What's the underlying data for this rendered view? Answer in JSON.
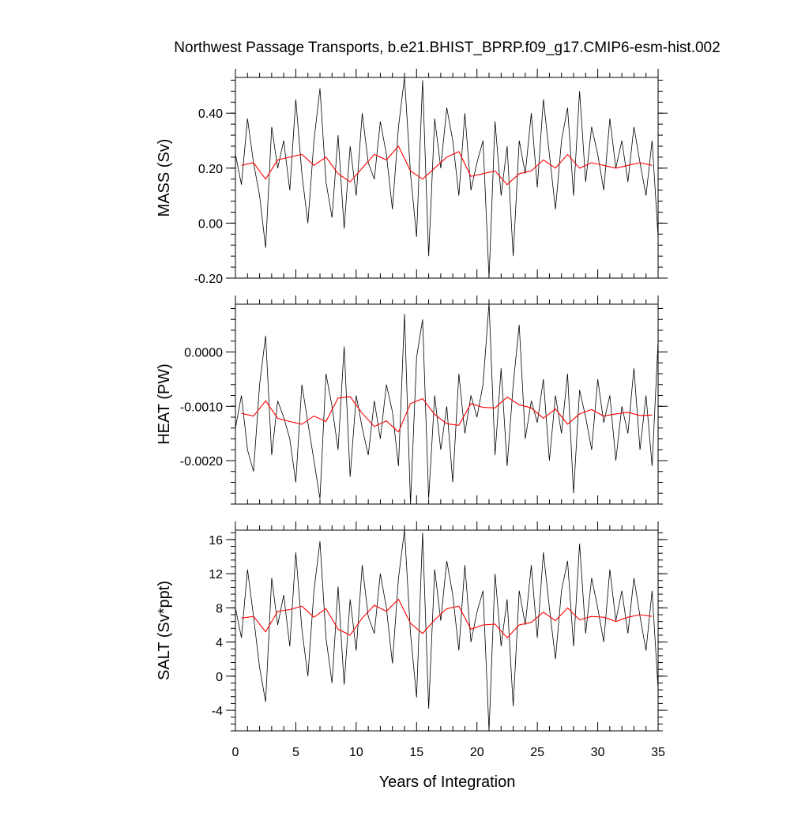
{
  "title": "Northwest Passage Transports, b.e21.BHIST_BPRP.f09_g17.CMIP6-esm-hist.002",
  "xlabel": "Years of Integration",
  "colors": {
    "raw": "#000000",
    "annual_mean": "#ff0000",
    "axes": "#000000"
  },
  "chart_data": [
    {
      "type": "line",
      "panel": "mass",
      "ylabel": "MASS (Sv)",
      "xlim": [
        0,
        35
      ],
      "ylim": [
        -0.2,
        0.53
      ],
      "x_ticks": [
        0,
        5,
        10,
        15,
        20,
        25,
        30,
        35
      ],
      "y_ticks": [
        -0.2,
        0.0,
        0.2,
        0.4
      ],
      "y_tick_labels": [
        "-0.20",
        "0.00",
        "0.20",
        "0.40"
      ],
      "series": [
        {
          "role": "monthly",
          "x": [
            0.0,
            0.5,
            1.0,
            1.5,
            2.0,
            2.5,
            3.0,
            3.5,
            4.0,
            4.5,
            5.0,
            5.5,
            6.0,
            6.5,
            7.0,
            7.5,
            8.0,
            8.5,
            9.0,
            9.5,
            10.0,
            10.5,
            11.0,
            11.5,
            12.0,
            12.5,
            13.0,
            13.5,
            14.0,
            14.5,
            15.0,
            15.5,
            16.0,
            16.5,
            17.0,
            17.5,
            18.0,
            18.5,
            19.0,
            19.5,
            20.0,
            20.5,
            21.0,
            21.5,
            22.0,
            22.5,
            23.0,
            23.5,
            24.0,
            24.5,
            25.0,
            25.5,
            26.0,
            26.5,
            27.0,
            27.5,
            28.0,
            28.5,
            29.0,
            29.5,
            30.0,
            30.5,
            31.0,
            31.5,
            32.0,
            32.5,
            33.0,
            33.5,
            34.0,
            34.5,
            35.0
          ],
          "values": [
            0.25,
            0.14,
            0.38,
            0.22,
            0.1,
            -0.09,
            0.35,
            0.2,
            0.3,
            0.12,
            0.45,
            0.18,
            0.0,
            0.3,
            0.49,
            0.15,
            0.02,
            0.32,
            -0.02,
            0.28,
            0.1,
            0.4,
            0.22,
            0.16,
            0.37,
            0.25,
            0.05,
            0.35,
            0.53,
            0.18,
            -0.05,
            0.52,
            -0.12,
            0.38,
            0.2,
            0.42,
            0.3,
            0.1,
            0.4,
            0.12,
            0.22,
            0.3,
            -0.2,
            0.37,
            0.1,
            0.28,
            -0.12,
            0.3,
            0.18,
            0.4,
            0.13,
            0.45,
            0.25,
            0.05,
            0.3,
            0.42,
            0.1,
            0.48,
            0.15,
            0.35,
            0.25,
            0.12,
            0.38,
            0.2,
            0.3,
            0.15,
            0.35,
            0.22,
            0.1,
            0.3,
            -0.05
          ]
        },
        {
          "role": "annual",
          "x": [
            0.5,
            1.5,
            2.5,
            3.5,
            4.5,
            5.5,
            6.5,
            7.5,
            8.5,
            9.5,
            10.5,
            11.5,
            12.5,
            13.5,
            14.5,
            15.5,
            16.5,
            17.5,
            18.5,
            19.5,
            20.5,
            21.5,
            22.5,
            23.5,
            24.5,
            25.5,
            26.5,
            27.5,
            28.5,
            29.5,
            30.5,
            31.5,
            32.5,
            33.5,
            34.5
          ],
          "values": [
            0.21,
            0.22,
            0.16,
            0.23,
            0.24,
            0.25,
            0.21,
            0.24,
            0.18,
            0.15,
            0.2,
            0.25,
            0.23,
            0.28,
            0.19,
            0.16,
            0.2,
            0.24,
            0.26,
            0.17,
            0.18,
            0.19,
            0.14,
            0.18,
            0.19,
            0.23,
            0.2,
            0.25,
            0.2,
            0.22,
            0.21,
            0.2,
            0.21,
            0.22,
            0.21
          ]
        }
      ]
    },
    {
      "type": "line",
      "panel": "heat",
      "ylabel": "HEAT (PW)",
      "xlim": [
        0,
        35
      ],
      "ylim": [
        -0.0028,
        0.00088
      ],
      "x_ticks": [
        0,
        5,
        10,
        15,
        20,
        25,
        30,
        35
      ],
      "y_ticks": [
        -0.002,
        -0.001,
        0.0
      ],
      "y_tick_labels": [
        "-0.0020",
        "-0.0010",
        "0.0000"
      ],
      "series": [
        {
          "role": "monthly",
          "x": [
            0.0,
            0.5,
            1.0,
            1.5,
            2.0,
            2.5,
            3.0,
            3.5,
            4.0,
            4.5,
            5.0,
            5.5,
            6.0,
            6.5,
            7.0,
            7.5,
            8.0,
            8.5,
            9.0,
            9.5,
            10.0,
            10.5,
            11.0,
            11.5,
            12.0,
            12.5,
            13.0,
            13.5,
            14.0,
            14.5,
            15.0,
            15.5,
            16.0,
            16.5,
            17.0,
            17.5,
            18.0,
            18.5,
            19.0,
            19.5,
            20.0,
            20.5,
            21.0,
            21.5,
            22.0,
            22.5,
            23.0,
            23.5,
            24.0,
            24.5,
            25.0,
            25.5,
            26.0,
            26.5,
            27.0,
            27.5,
            28.0,
            28.5,
            29.0,
            29.5,
            30.0,
            30.5,
            31.0,
            31.5,
            32.0,
            32.5,
            33.0,
            33.5,
            34.0,
            34.5,
            35.0
          ],
          "values": [
            -0.0014,
            -0.0008,
            -0.0018,
            -0.0022,
            -0.0006,
            0.0003,
            -0.0019,
            -0.0009,
            -0.0012,
            -0.0016,
            -0.0024,
            -0.0006,
            -0.0013,
            -0.002,
            -0.0027,
            -0.0004,
            -0.001,
            -0.0018,
            0.0001,
            -0.0023,
            -0.0008,
            -0.0014,
            -0.0019,
            -0.0009,
            -0.0016,
            -0.0006,
            -0.0011,
            -0.0021,
            0.0007,
            -0.0028,
            -0.0001,
            0.0006,
            -0.0027,
            -0.0008,
            -0.0018,
            -0.001,
            -0.0024,
            -0.0004,
            -0.0015,
            -0.0008,
            -0.0012,
            -0.0006,
            0.0009,
            -0.0019,
            -0.0003,
            -0.0021,
            -0.0006,
            0.0005,
            -0.0016,
            -0.0009,
            -0.0013,
            -0.0005,
            -0.002,
            -0.0008,
            -0.0015,
            -0.0004,
            -0.0026,
            -0.0007,
            -0.0012,
            -0.0018,
            -0.0005,
            -0.0013,
            -0.0008,
            -0.002,
            -0.001,
            -0.0015,
            -0.0003,
            -0.0018,
            -0.0008,
            -0.0021,
            0.0002
          ]
        },
        {
          "role": "annual",
          "x": [
            0.5,
            1.5,
            2.5,
            3.5,
            4.5,
            5.5,
            6.5,
            7.5,
            8.5,
            9.5,
            10.5,
            11.5,
            12.5,
            13.5,
            14.5,
            15.5,
            16.5,
            17.5,
            18.5,
            19.5,
            20.5,
            21.5,
            22.5,
            23.5,
            24.5,
            25.5,
            26.5,
            27.5,
            28.5,
            29.5,
            30.5,
            31.5,
            32.5,
            33.5,
            34.5
          ],
          "values": [
            -0.00113,
            -0.00118,
            -0.0009,
            -0.00122,
            -0.00128,
            -0.00133,
            -0.00118,
            -0.00128,
            -0.00085,
            -0.00082,
            -0.00113,
            -0.00137,
            -0.00127,
            -0.00147,
            -0.00095,
            -0.00086,
            -0.00115,
            -0.00132,
            -0.00135,
            -0.00095,
            -0.00102,
            -0.00103,
            -0.00083,
            -0.00097,
            -0.00103,
            -0.00122,
            -0.00105,
            -0.00133,
            -0.00114,
            -0.00106,
            -0.00118,
            -0.00114,
            -0.00111,
            -0.00117,
            -0.00116
          ]
        }
      ]
    },
    {
      "type": "line",
      "panel": "salt",
      "ylabel": "SALT (Sv*ppt)",
      "xlim": [
        0,
        35
      ],
      "ylim": [
        -6.4,
        17.1
      ],
      "x_ticks": [
        0,
        5,
        10,
        15,
        20,
        25,
        30,
        35
      ],
      "x_tick_labels": [
        "0",
        "5",
        "10",
        "15",
        "20",
        "25",
        "30",
        "35"
      ],
      "y_ticks": [
        -4,
        0,
        4,
        8,
        12,
        16
      ],
      "y_tick_labels": [
        "-4",
        "0",
        "4",
        "8",
        "12",
        "16"
      ],
      "series": [
        {
          "role": "monthly",
          "x": [
            0.0,
            0.5,
            1.0,
            1.5,
            2.0,
            2.5,
            3.0,
            3.5,
            4.0,
            4.5,
            5.0,
            5.5,
            6.0,
            6.5,
            7.0,
            7.5,
            8.0,
            8.5,
            9.0,
            9.5,
            10.0,
            10.5,
            11.0,
            11.5,
            12.0,
            12.5,
            13.0,
            13.5,
            14.0,
            14.5,
            15.0,
            15.5,
            16.0,
            16.5,
            17.0,
            17.5,
            18.0,
            18.5,
            19.0,
            19.5,
            20.0,
            20.5,
            21.0,
            21.5,
            22.0,
            22.5,
            23.0,
            23.5,
            24.0,
            24.5,
            25.0,
            25.5,
            26.0,
            26.5,
            27.0,
            27.5,
            28.0,
            28.5,
            29.0,
            29.5,
            30.0,
            30.5,
            31.0,
            31.5,
            32.0,
            32.5,
            33.0,
            33.5,
            34.0,
            34.5,
            35.0
          ],
          "values": [
            8.0,
            4.5,
            12.5,
            7.0,
            1.0,
            -3.0,
            11.5,
            6.0,
            9.5,
            3.5,
            14.5,
            5.5,
            0.0,
            10.0,
            15.8,
            4.5,
            -0.8,
            10.5,
            -1.0,
            9.0,
            3.0,
            13.0,
            7.0,
            5.0,
            12.0,
            8.0,
            1.5,
            11.5,
            17.1,
            5.0,
            -2.5,
            16.8,
            -3.8,
            12.5,
            6.5,
            13.5,
            9.5,
            3.0,
            13.0,
            4.0,
            7.5,
            10.0,
            -6.4,
            12.0,
            3.5,
            9.0,
            -3.5,
            10.0,
            6.0,
            13.0,
            4.5,
            14.5,
            8.0,
            2.0,
            10.0,
            13.5,
            3.5,
            15.5,
            5.0,
            11.5,
            8.0,
            4.0,
            12.5,
            6.5,
            10.0,
            5.0,
            11.5,
            7.0,
            3.0,
            10.0,
            -1.5
          ]
        },
        {
          "role": "annual",
          "x": [
            0.5,
            1.5,
            2.5,
            3.5,
            4.5,
            5.5,
            6.5,
            7.5,
            8.5,
            9.5,
            10.5,
            11.5,
            12.5,
            13.5,
            14.5,
            15.5,
            16.5,
            17.5,
            18.5,
            19.5,
            20.5,
            21.5,
            22.5,
            23.5,
            24.5,
            25.5,
            26.5,
            27.5,
            28.5,
            29.5,
            30.5,
            31.5,
            32.5,
            33.5,
            34.5
          ],
          "values": [
            6.8,
            7.0,
            5.2,
            7.6,
            7.8,
            8.2,
            6.9,
            7.9,
            5.5,
            4.8,
            6.8,
            8.3,
            7.6,
            9.0,
            6.2,
            5.0,
            6.6,
            7.9,
            8.2,
            5.5,
            6.0,
            6.1,
            4.5,
            6.0,
            6.3,
            7.5,
            6.5,
            8.0,
            6.6,
            7.0,
            6.9,
            6.4,
            6.9,
            7.2,
            7.0
          ]
        }
      ]
    }
  ]
}
